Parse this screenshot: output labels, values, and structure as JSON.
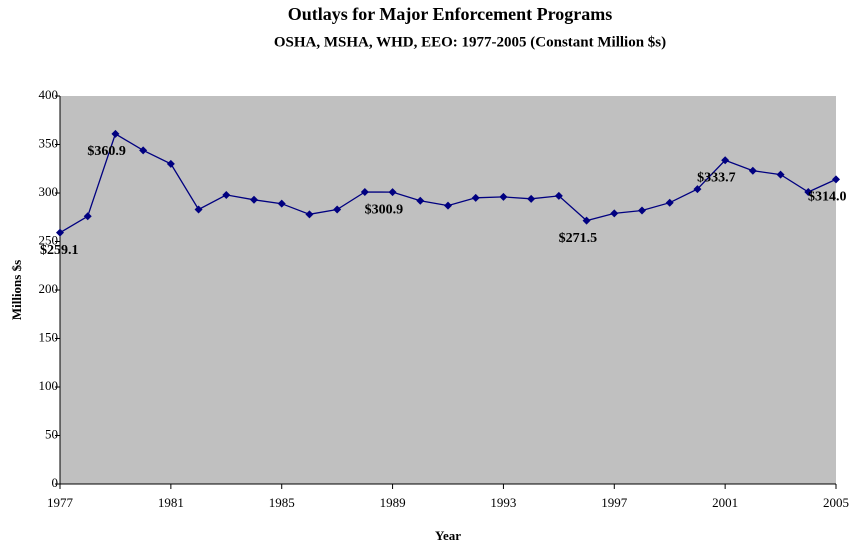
{
  "chart_data": {
    "type": "line",
    "title": "Outlays for Major Enforcement Programs",
    "subtitle": "OSHA, MSHA, WHD, EEO: 1977-2005 (Constant Million $s)",
    "x_label": "Year",
    "y_label": "Millions $s",
    "x": [
      1977,
      1978,
      1979,
      1980,
      1981,
      1982,
      1983,
      1984,
      1985,
      1986,
      1987,
      1988,
      1989,
      1990,
      1991,
      1992,
      1993,
      1994,
      1995,
      1996,
      1997,
      1998,
      1999,
      2000,
      2001,
      2002,
      2003,
      2004,
      2005
    ],
    "series": [
      {
        "name": "Outlays",
        "color": "#000080",
        "values": [
          259.1,
          276,
          360.9,
          344,
          330,
          283,
          298,
          293,
          289,
          278,
          283,
          301,
          300.9,
          292,
          287,
          295,
          296,
          294,
          297,
          271.5,
          279,
          282,
          290,
          304,
          333.7,
          323,
          319,
          301,
          314.0
        ],
        "value_labels": [
          "$259.1",
          null,
          "$360.9",
          null,
          null,
          null,
          null,
          null,
          null,
          null,
          null,
          null,
          "$300.9",
          null,
          null,
          null,
          null,
          null,
          null,
          "$271.5",
          null,
          null,
          null,
          null,
          "$333.7",
          null,
          null,
          null,
          "$314.0"
        ]
      }
    ],
    "xlim": [
      1977,
      2005
    ],
    "xticks": [
      1977,
      1981,
      1985,
      1989,
      1993,
      1997,
      2001,
      2005
    ],
    "ylim": [
      0,
      400
    ],
    "yticks": [
      0,
      50,
      100,
      150,
      200,
      250,
      300,
      350,
      400
    ],
    "plot_background": "#c0c0c0"
  }
}
